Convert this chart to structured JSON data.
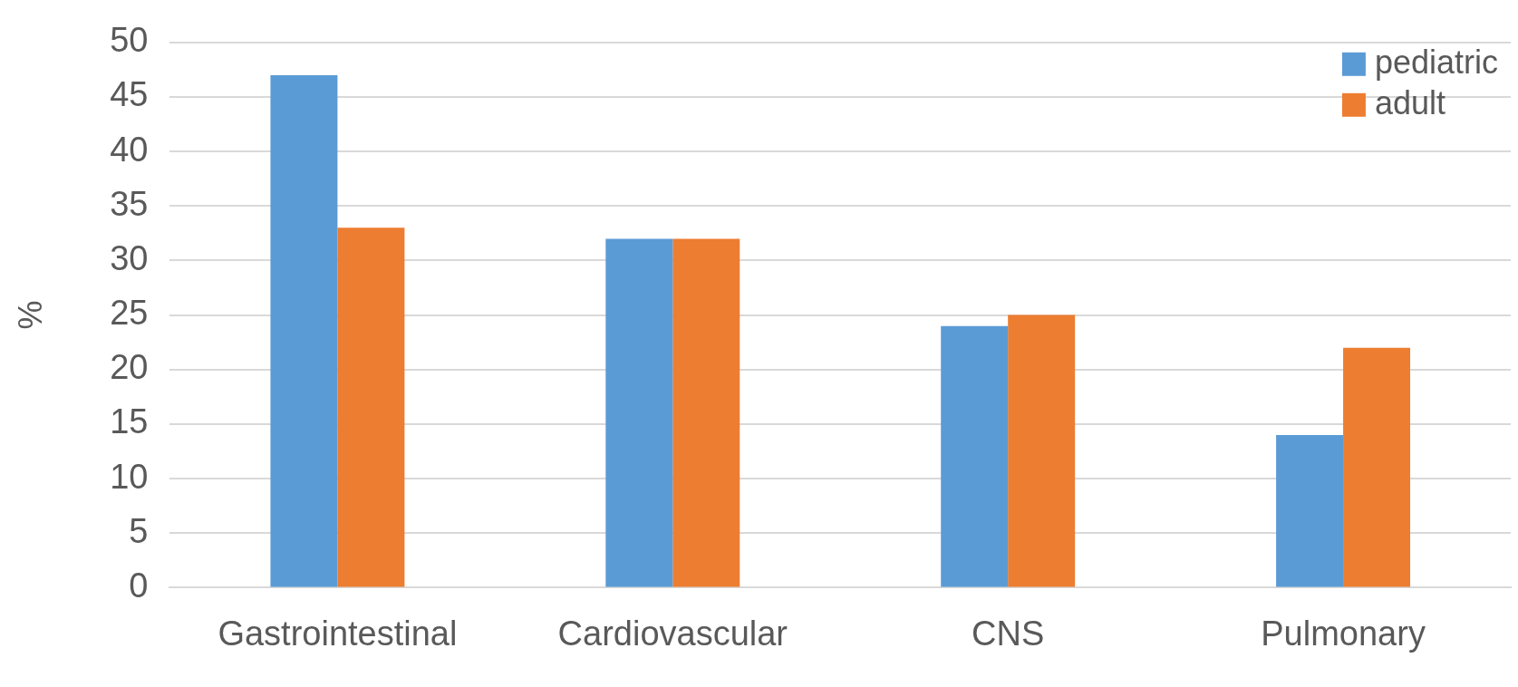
{
  "chart_data": {
    "type": "bar",
    "ylabel": "%",
    "categories": [
      "Gastrointestinal",
      "Cardiovascular",
      "CNS",
      "Pulmonary"
    ],
    "series": [
      {
        "name": "pediatric",
        "color": "#5b9bd5",
        "values": [
          47,
          32,
          24,
          14
        ]
      },
      {
        "name": "adult",
        "color": "#ed7d31",
        "values": [
          33,
          32,
          25,
          22
        ]
      }
    ],
    "ylim": [
      0,
      50
    ],
    "yticks": [
      0,
      5,
      10,
      15,
      20,
      25,
      30,
      35,
      40,
      45,
      50
    ],
    "grid": "y",
    "legend": "top right"
  }
}
